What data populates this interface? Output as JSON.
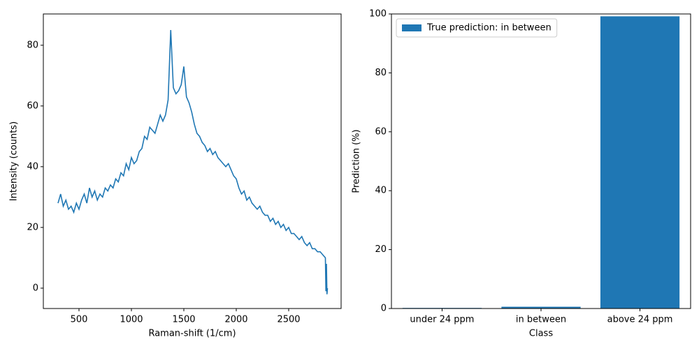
{
  "chart_data": [
    {
      "type": "line",
      "xlabel": "Raman-shift (1/cm)",
      "ylabel": "Intensity (counts)",
      "x": [
        300,
        325,
        350,
        375,
        400,
        425,
        450,
        475,
        500,
        525,
        550,
        575,
        600,
        625,
        650,
        675,
        700,
        725,
        750,
        775,
        800,
        825,
        850,
        875,
        900,
        925,
        950,
        975,
        1000,
        1025,
        1050,
        1075,
        1100,
        1125,
        1150,
        1175,
        1200,
        1225,
        1250,
        1275,
        1300,
        1325,
        1350,
        1375,
        1400,
        1425,
        1450,
        1475,
        1500,
        1525,
        1550,
        1575,
        1600,
        1625,
        1650,
        1675,
        1700,
        1725,
        1750,
        1775,
        1800,
        1825,
        1850,
        1875,
        1900,
        1925,
        1950,
        1975,
        2000,
        2025,
        2050,
        2075,
        2100,
        2125,
        2150,
        2175,
        2200,
        2225,
        2250,
        2275,
        2300,
        2325,
        2350,
        2375,
        2400,
        2425,
        2450,
        2475,
        2500,
        2525,
        2550,
        2575,
        2600,
        2625,
        2650,
        2675,
        2700,
        2725,
        2750,
        2775,
        2800,
        2825,
        2850,
        2855,
        2860,
        2865,
        2870
      ],
      "values": [
        28,
        31,
        27,
        29,
        26,
        27,
        25,
        28,
        26,
        29,
        31,
        28,
        33,
        30,
        32,
        29,
        31,
        30,
        33,
        32,
        34,
        33,
        36,
        35,
        38,
        37,
        41,
        39,
        43,
        41,
        42,
        45,
        46,
        50,
        49,
        53,
        52,
        51,
        54,
        57,
        55,
        57,
        62,
        85,
        66,
        64,
        65,
        67,
        73,
        63,
        61,
        58,
        54,
        51,
        50,
        48,
        47,
        45,
        46,
        44,
        45,
        43,
        42,
        41,
        40,
        41,
        39,
        37,
        36,
        33,
        31,
        32,
        29,
        30,
        28,
        27,
        26,
        27,
        25,
        24,
        24,
        22,
        23,
        21,
        22,
        20,
        21,
        19,
        20,
        18,
        18,
        17,
        16,
        17,
        15,
        14,
        15,
        13,
        13,
        12,
        12,
        11,
        10,
        -1,
        8,
        -2,
        0
      ],
      "color": "#1f77b4",
      "xlim": [
        160,
        3000
      ],
      "xticks": [
        500,
        1000,
        1500,
        2000,
        2500
      ],
      "ylim": [
        -6.7,
        90.3
      ],
      "yticks": [
        0,
        20,
        40,
        60,
        80
      ]
    },
    {
      "type": "bar",
      "xlabel": "Class",
      "ylabel": "Prediction (%)",
      "categories": [
        "under 24 ppm",
        "in between",
        "above 24 ppm"
      ],
      "series": [
        {
          "name": "True prediction: in between",
          "color": "#1f77b4",
          "values": [
            0.2,
            0.6,
            99.2
          ]
        }
      ],
      "ylim": [
        0,
        100
      ],
      "yticks": [
        0,
        20,
        40,
        60,
        80,
        100
      ],
      "legend": "upper left"
    }
  ]
}
